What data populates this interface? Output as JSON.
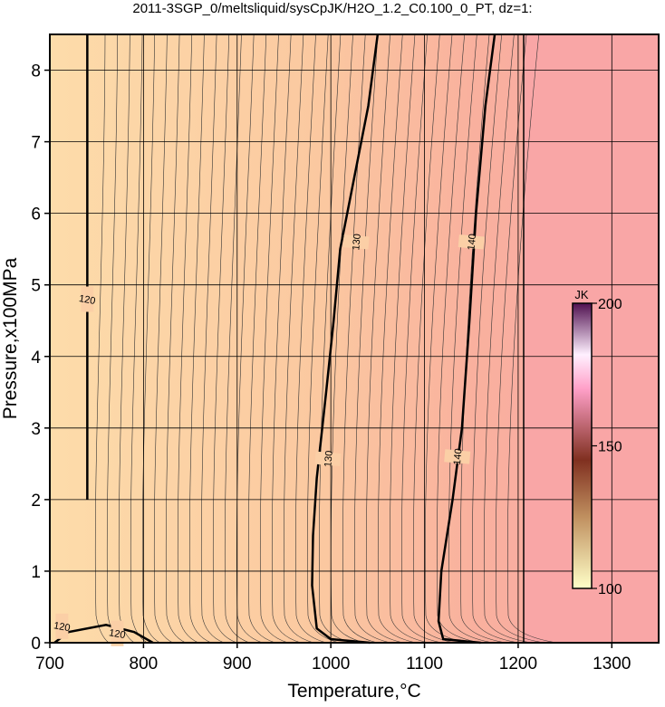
{
  "chart_data": {
    "type": "contour",
    "title": "2011-3SGP_0/meltsliquid/sysCpJK/H2O_1.2_C0.100_0_PT, dz=1:",
    "x_label": "Temperature,°C",
    "y_label": "Pressure,x100MPa",
    "xlim": [
      700,
      1350
    ],
    "xticks": [
      700,
      800,
      900,
      1000,
      1100,
      1200,
      1300
    ],
    "ylim": [
      0,
      8.5
    ],
    "yticks": [
      0,
      1,
      2,
      3,
      4,
      5,
      6,
      7,
      8
    ],
    "grid": true,
    "contours": [
      {
        "level": 120,
        "x": [
          705,
          720,
          760,
          790,
          810
        ],
        "y": [
          0,
          0.15,
          0.25,
          0.15,
          0
        ],
        "labels": [
          {
            "x": 713,
            "y": 0.23
          },
          {
            "x": 772,
            "y": 0.13
          }
        ]
      },
      {
        "level": 120,
        "x": [
          740,
          740,
          740,
          740
        ],
        "y": [
          2,
          4,
          6,
          8.5
        ],
        "labels": [
          {
            "x": 740,
            "y": 4.8
          }
        ]
      },
      {
        "level": 130,
        "x": [
          1042,
          1000,
          985,
          980,
          981,
          985,
          995,
          1003,
          1010,
          1025,
          1040,
          1050
        ],
        "y": [
          0,
          0.05,
          0.2,
          0.8,
          1.5,
          2.3,
          3.5,
          4.5,
          5.5,
          6.5,
          7.5,
          8.5
        ],
        "labels": [
          {
            "x": 997,
            "y": 2.57
          },
          {
            "x": 1027,
            "y": 5.6
          }
        ]
      },
      {
        "level": 140,
        "x": [
          1160,
          1120,
          1115,
          1118,
          1130,
          1140,
          1148,
          1155,
          1165,
          1175
        ],
        "y": [
          0,
          0.05,
          0.3,
          1.0,
          2.0,
          3.0,
          4.5,
          6,
          7.5,
          8.5
        ],
        "labels": [
          {
            "x": 1135,
            "y": 2.6
          },
          {
            "x": 1150,
            "y": 5.6
          }
        ]
      }
    ],
    "colorbar": {
      "label": "JK",
      "lim": [
        100,
        200
      ],
      "ticks": [
        100,
        150,
        200
      ]
    }
  }
}
